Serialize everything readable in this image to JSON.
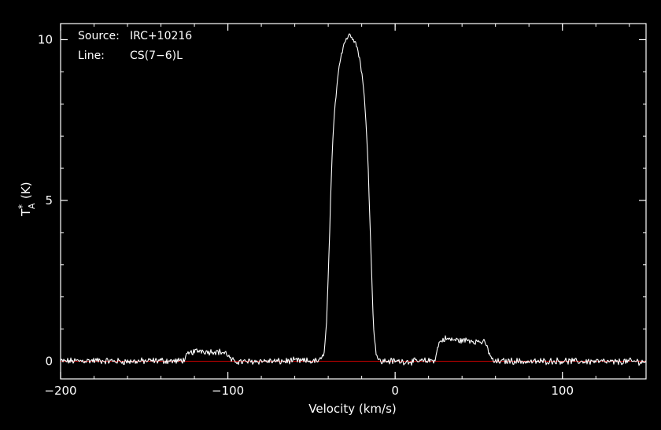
{
  "chart_data": {
    "type": "line",
    "info": {
      "source_key": "Source:",
      "source_value": "IRC+10216",
      "line_key": "Line:",
      "line_value": "CS(7−6)L"
    },
    "xlabel": "Velocity (km/s)",
    "ylabel": {
      "base": "T",
      "superscript": "*",
      "subscript": "A",
      "unit": "(K)"
    },
    "xlim": [
      -200,
      150
    ],
    "ylim": [
      -0.55,
      10.5
    ],
    "x_ticks": [
      {
        "value": -200,
        "label": "−200"
      },
      {
        "value": -100,
        "label": "−100"
      },
      {
        "value": 0,
        "label": "0"
      },
      {
        "value": 100,
        "label": "100"
      }
    ],
    "y_ticks": [
      {
        "value": 0,
        "label": "0"
      },
      {
        "value": 5,
        "label": "5"
      },
      {
        "value": 10,
        "label": "10"
      }
    ],
    "minor_x_step": 20,
    "minor_y_step": 1,
    "baseline": {
      "value": 0,
      "color": "#cc0000"
    },
    "colors": {
      "background": "#000000",
      "axes": "#ffffff",
      "spectrum": "#ffffff"
    },
    "series": [
      {
        "x": [
          -200,
          -180,
          -160,
          -140,
          -130,
          -126,
          -124,
          -122,
          -120,
          -116,
          -112,
          -108,
          -104,
          -102,
          -100,
          -98,
          -96,
          -90,
          -80,
          -70,
          -60,
          -50,
          -46,
          -44,
          -43,
          -42,
          -41,
          -40,
          -39,
          -38,
          -37,
          -36,
          -35,
          -34,
          -33,
          -32,
          -31,
          -30,
          -29,
          -28,
          -27,
          -26,
          -25,
          -24,
          -23,
          -22,
          -21,
          -20,
          -19,
          -18,
          -17,
          -16,
          -15,
          -14,
          -13,
          -12,
          -11,
          -10,
          -9,
          -8,
          -6,
          0,
          10,
          20,
          24,
          26,
          28,
          30,
          32,
          36,
          40,
          44,
          48,
          52,
          54,
          56,
          58,
          60,
          64,
          70,
          80,
          90,
          100,
          110,
          120,
          130,
          140,
          150
        ],
        "y": [
          0.0,
          0.02,
          -0.01,
          0.02,
          0.0,
          0.05,
          0.2,
          0.27,
          0.3,
          0.34,
          0.29,
          0.31,
          0.28,
          0.26,
          0.2,
          0.02,
          0.0,
          -0.02,
          0.01,
          -0.01,
          0.02,
          0.0,
          0.01,
          0.05,
          0.2,
          0.5,
          1.2,
          2.6,
          4.3,
          5.9,
          7.1,
          7.9,
          8.5,
          9.0,
          9.35,
          9.6,
          9.8,
          9.95,
          10.05,
          10.1,
          10.15,
          10.12,
          10.05,
          9.95,
          9.8,
          9.6,
          9.35,
          9.0,
          8.5,
          7.9,
          7.1,
          5.9,
          4.3,
          2.6,
          1.2,
          0.5,
          0.2,
          0.05,
          0.0,
          -0.02,
          0.01,
          0.0,
          -0.01,
          0.01,
          0.05,
          0.55,
          0.65,
          0.7,
          0.68,
          0.66,
          0.64,
          0.66,
          0.62,
          0.6,
          0.55,
          0.3,
          0.03,
          -0.02,
          0.0,
          0.01,
          -0.02,
          0.0,
          0.01,
          -0.01,
          0.0,
          -0.03,
          0.0,
          -0.02
        ]
      }
    ]
  }
}
